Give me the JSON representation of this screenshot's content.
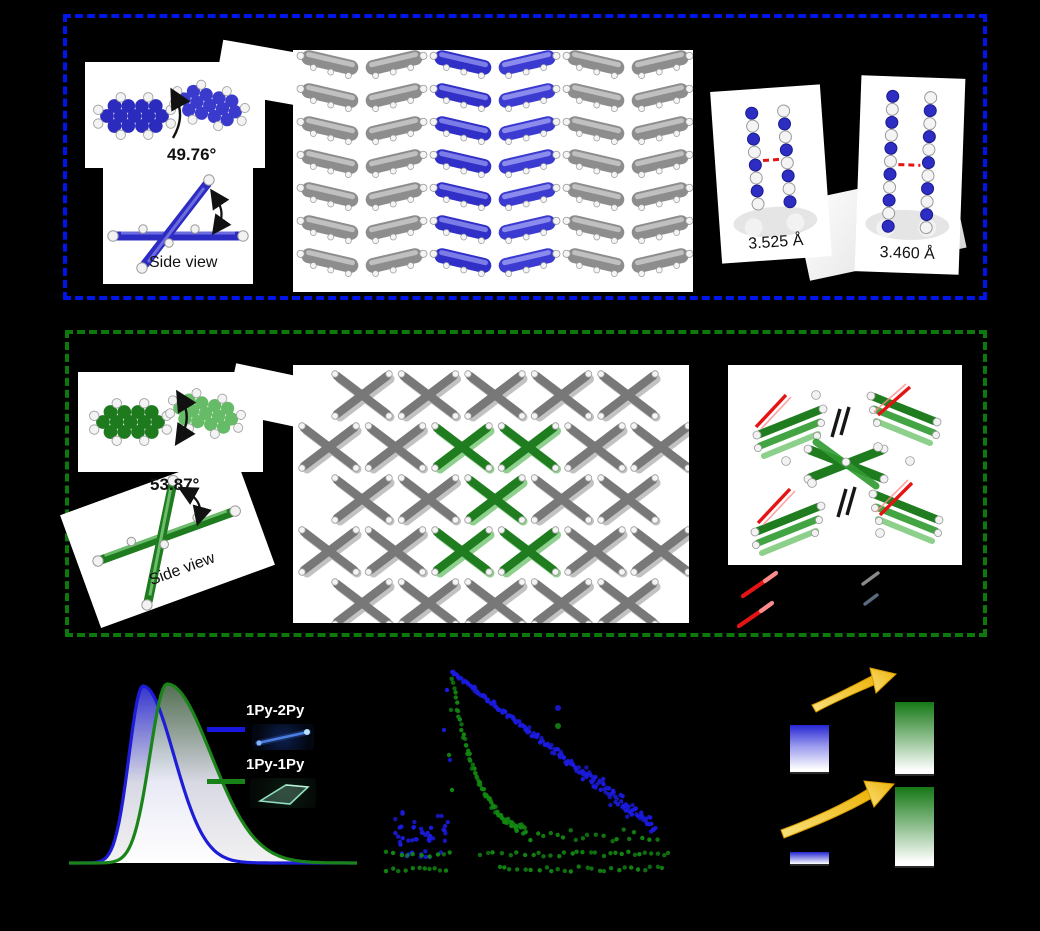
{
  "page": {
    "background": "#000000"
  },
  "blue_section": {
    "border_color": "#0016e8",
    "angle_label": "49.76°",
    "side_view_label": "Side view",
    "distance_label_1": "3.525 Å",
    "distance_label_2": "3.460 Å",
    "molecule_color": "#3232c6",
    "carbon_gray": "#8d8d8d",
    "contact_red": "#e41414"
  },
  "green_section": {
    "border_color": "#0d790d",
    "angle_label": "53.87°",
    "side_view_label": "Side view",
    "molecule_dark": "#1f7d1f",
    "molecule_light": "#8fd08f",
    "carbon_gray": "#787878",
    "contact_red": "#e41414",
    "contact_black": "#161616"
  },
  "chart_data": [
    {
      "type": "area",
      "title": "",
      "description": "Normalized emission spectra of the two crystals; axis labels not visible (black on black).",
      "axes_labels_visible": false,
      "baseline_y": 213,
      "x_start": 14,
      "x_end": 302,
      "series": [
        {
          "name": "1Py-2Py",
          "color": "#1d1dd8",
          "peak_x": 88,
          "peak_y": 36,
          "sigma_left": 14,
          "sigma_right": 31,
          "fill_top": "rgba(58,58,224,0.92)"
        },
        {
          "name": "1Py-1Py",
          "color": "#1a841a",
          "peak_x": 112,
          "peak_y": 34,
          "sigma_left": 17,
          "sigma_right": 44,
          "fill_top": "rgba(105,140,105,0.80)"
        }
      ],
      "legend": [
        {
          "label": "1Py-2Py",
          "color": "#1717dd",
          "photo": "blue glowing needle crystal"
        },
        {
          "label": "1Py-1Py",
          "color": "#178217",
          "photo": "green glowing plate crystal"
        }
      ]
    },
    {
      "type": "scatter",
      "description": "Fluorescence decay (log intensity vs time): 1Py-2Py decays slowly (straight line on log scale), 1Py-1Py decays fast; axis labels not visible.",
      "axes_labels_visible": false,
      "dot_radius": 2.2,
      "series": [
        {
          "name": "1Py-2Py",
          "color": "#1b1be0",
          "model": "linear_log",
          "x0": 122,
          "y0": 22,
          "x1": 325,
          "slope": 0.764
        },
        {
          "name": "1Py-1Py",
          "color": "#128812",
          "model": "exp",
          "x0": 122,
          "y0": 28,
          "y_inf": 190,
          "tau": 26
        }
      ],
      "noise_cluster_blue": {
        "x_min": 63,
        "x_max": 118,
        "y_min": 162,
        "y_max": 208
      },
      "noise_rows_green_y": [
        204,
        219
      ],
      "legend_dots": {
        "blue": [
          228,
          58
        ],
        "green": [
          228,
          76
        ]
      }
    }
  ],
  "energy_diagram": {
    "left_color": "#2626d2",
    "right_color": "#157815",
    "arrow_gradient": [
      "#f9e27f",
      "#edb207"
    ],
    "rows": [
      {
        "left_height": 47,
        "right_height": 72
      },
      {
        "left_height": 12,
        "right_height": 79
      }
    ]
  }
}
